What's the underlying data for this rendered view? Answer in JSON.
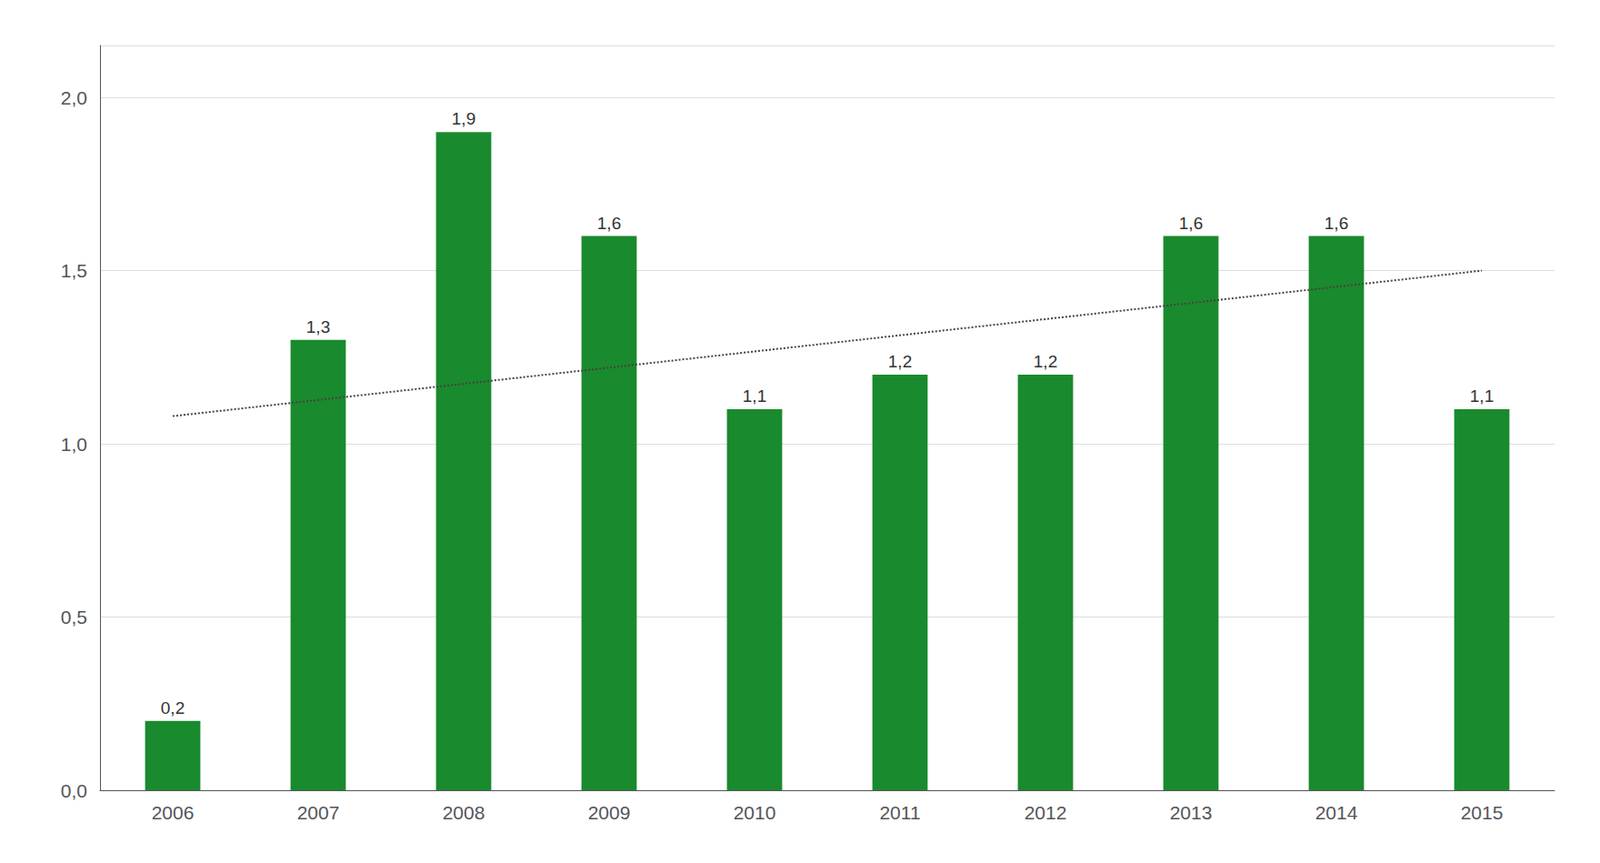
{
  "chart_data": {
    "type": "bar",
    "categories": [
      "2006",
      "2007",
      "2008",
      "2009",
      "2010",
      "2011",
      "2012",
      "2013",
      "2014",
      "2015"
    ],
    "values": [
      0.2,
      1.3,
      1.9,
      1.6,
      1.1,
      1.2,
      1.2,
      1.6,
      1.6,
      1.1
    ],
    "value_labels": [
      "0,2",
      "1,3",
      "1,9",
      "1,6",
      "1,1",
      "1,2",
      "1,2",
      "1,6",
      "1,6",
      "1,1"
    ],
    "data_labels": true,
    "color": "#1a8a2e",
    "ylim": [
      0.0,
      2.15
    ],
    "yticks": [
      {
        "value": 0.0,
        "label": "0,0"
      },
      {
        "value": 0.5,
        "label": "0,5"
      },
      {
        "value": 1.0,
        "label": "1,0"
      },
      {
        "value": 1.5,
        "label": "1,5"
      },
      {
        "value": 2.0,
        "label": "2,0"
      }
    ],
    "grid": true,
    "trend": {
      "start": 1.08,
      "end": 1.5,
      "color": "#444444",
      "line_style": "dotted"
    }
  }
}
